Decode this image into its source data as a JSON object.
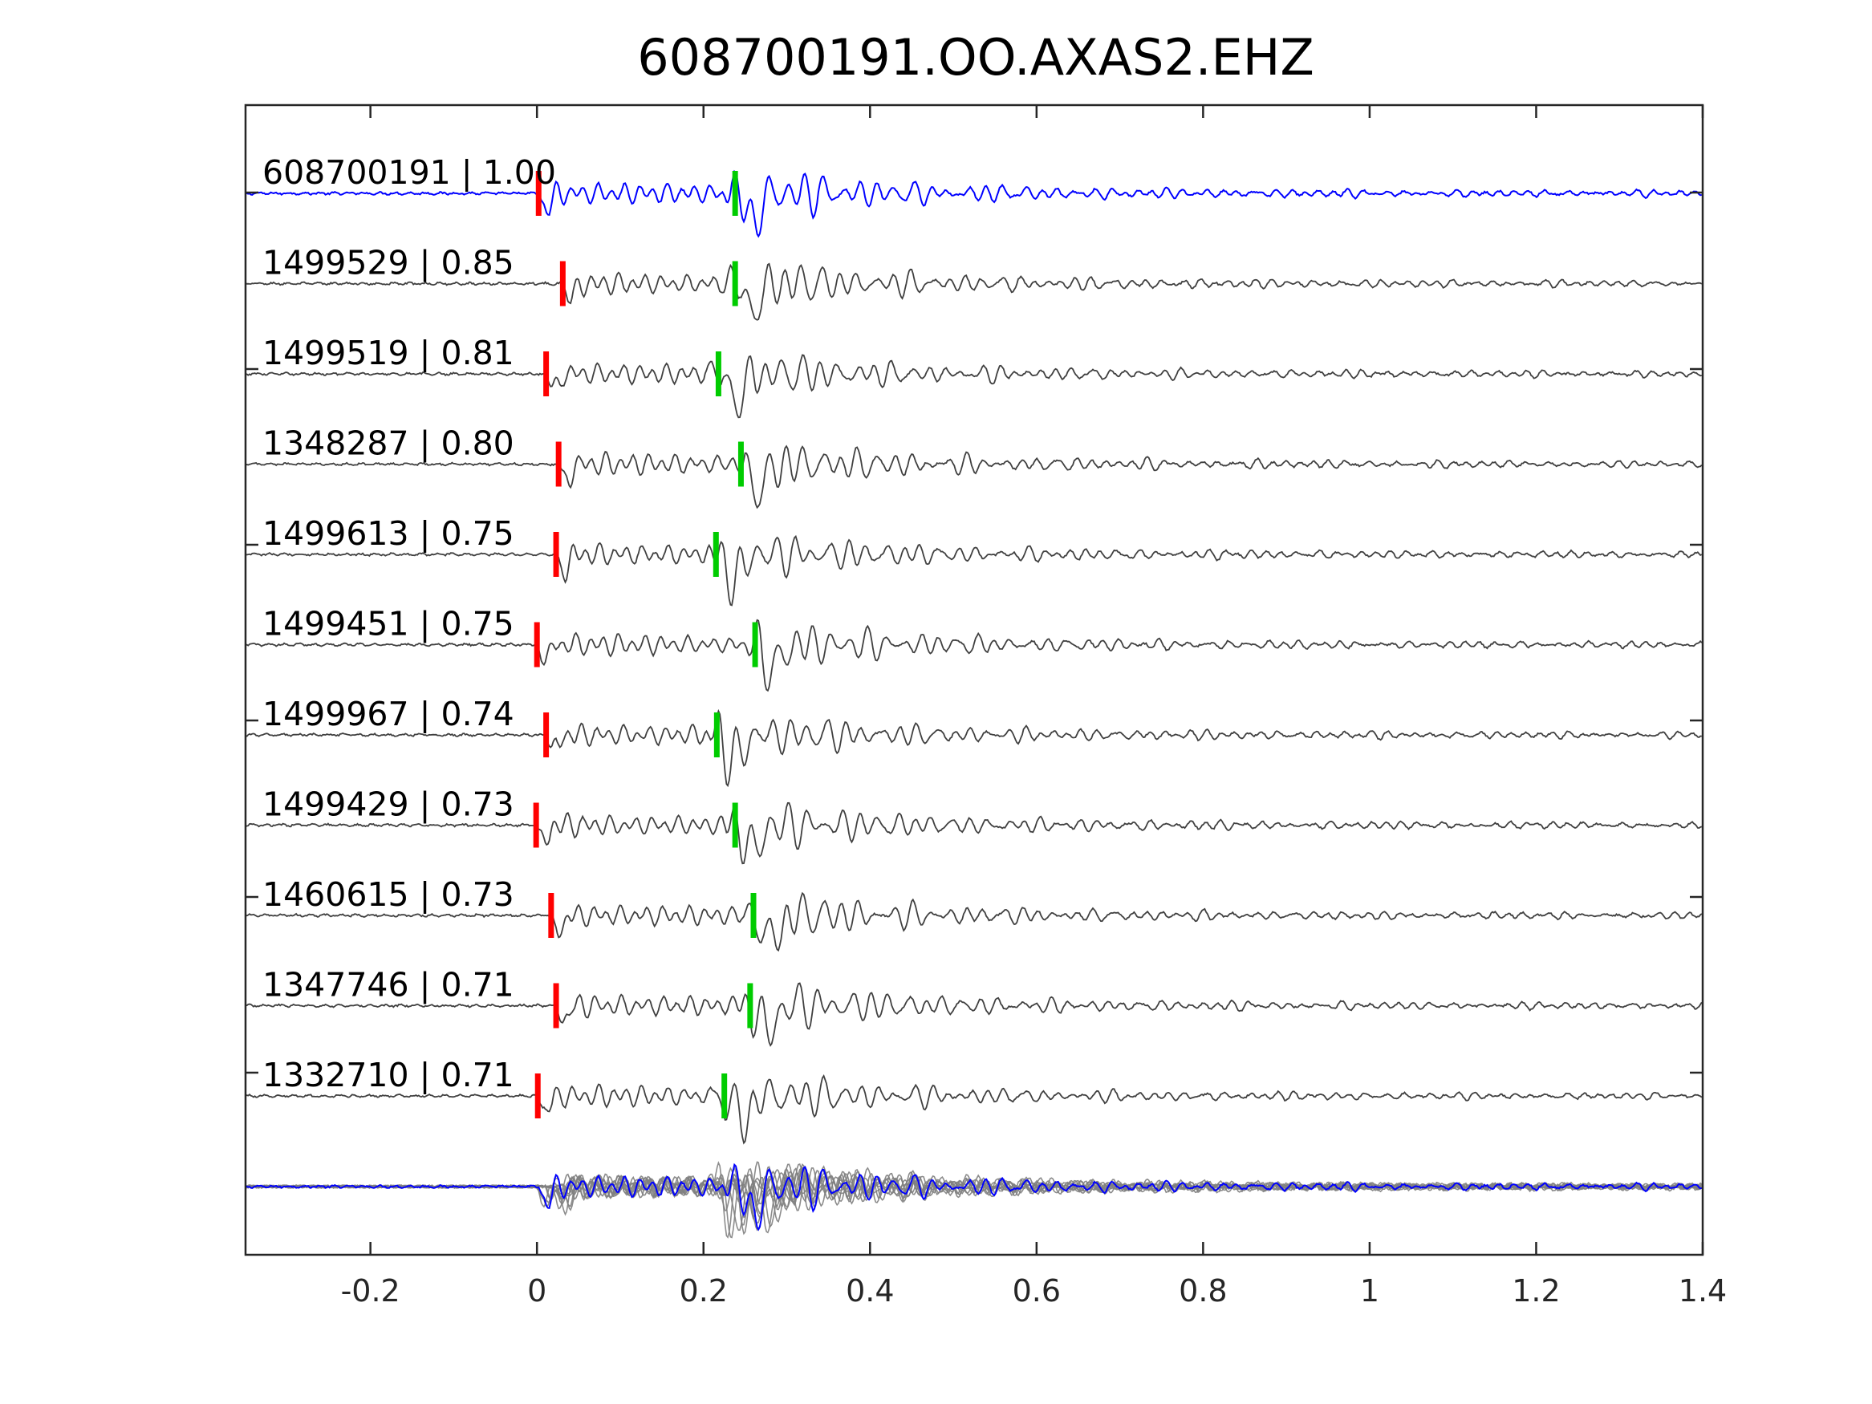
{
  "chart_data": {
    "type": "line",
    "title": "608700191.OO.AXAS2.EHZ",
    "xlabel": "",
    "ylabel": "",
    "xlim": [
      -0.35,
      1.4
    ],
    "xticks": [
      -0.2,
      0,
      0.2,
      0.4,
      0.6,
      0.8,
      1,
      1.2,
      1.4
    ],
    "xtick_labels": [
      "-0.2",
      "0",
      "0.2",
      "0.4",
      "0.6",
      "0.8",
      "1",
      "1.2",
      "1.4"
    ],
    "grid": false,
    "colors": {
      "template": "#0000ff",
      "match": "#404040",
      "stack_match": "#808080",
      "p_pick": "#ff0000",
      "s_pick": "#00cc00",
      "axes": "#262626"
    },
    "traces": [
      {
        "label": "608700191 | 1.00",
        "id": "608700191",
        "cc": 1.0,
        "p_time": 0.002,
        "s_time": 0.238,
        "template": true
      },
      {
        "label": "1499529 | 0.85",
        "id": "1499529",
        "cc": 0.85,
        "p_time": 0.031,
        "s_time": 0.238
      },
      {
        "label": "1499519 | 0.81",
        "id": "1499519",
        "cc": 0.81,
        "p_time": 0.011,
        "s_time": 0.218
      },
      {
        "label": "1348287 | 0.80",
        "id": "1348287",
        "cc": 0.8,
        "p_time": 0.026,
        "s_time": 0.245
      },
      {
        "label": "1499613 | 0.75",
        "id": "1499613",
        "cc": 0.75,
        "p_time": 0.023,
        "s_time": 0.215
      },
      {
        "label": "1499451 | 0.75",
        "id": "1499451",
        "cc": 0.75,
        "p_time": 0.0,
        "s_time": 0.262
      },
      {
        "label": "1499967 | 0.74",
        "id": "1499967",
        "cc": 0.74,
        "p_time": 0.011,
        "s_time": 0.216
      },
      {
        "label": "1499429 | 0.73",
        "id": "1499429",
        "cc": 0.73,
        "p_time": -0.001,
        "s_time": 0.238
      },
      {
        "label": "1460615 | 0.73",
        "id": "1460615",
        "cc": 0.73,
        "p_time": 0.017,
        "s_time": 0.26
      },
      {
        "label": "1347746 | 0.71",
        "id": "1347746",
        "cc": 0.71,
        "p_time": 0.023,
        "s_time": 0.256
      },
      {
        "label": "1332710 | 0.71",
        "id": "1332710",
        "cc": 0.71,
        "p_time": 0.001,
        "s_time": 0.225
      }
    ],
    "stack": {
      "present": true
    }
  }
}
